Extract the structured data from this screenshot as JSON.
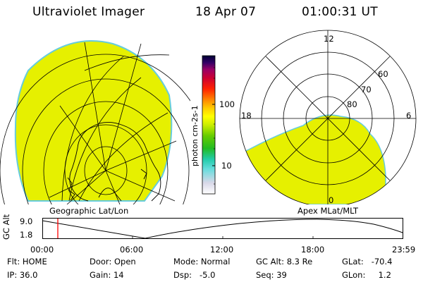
{
  "header": {
    "title": "Ultraviolet Imager",
    "date": "18 Apr 07",
    "time": "01:00:31 UT"
  },
  "colorbar": {
    "label": "photon cm-2s-1",
    "ticks": [
      "100",
      "10"
    ]
  },
  "left_panel": {
    "caption": "Geographic Lat/Lon"
  },
  "right_panel": {
    "caption": "Apex MLat/MLT",
    "mlt_labels": [
      "12",
      "18",
      "6",
      "0"
    ],
    "lat_labels": [
      "60",
      "70",
      "80"
    ]
  },
  "altitude_plot": {
    "axis_label": "GC Alt",
    "y_ticks": [
      "9.0",
      "1.8"
    ],
    "x_ticks": [
      "00:00",
      "06:00",
      "12:00",
      "18:00",
      "23:59"
    ],
    "marker_time": "01:00"
  },
  "status": {
    "flt_label": "Flt:",
    "flt_value": "HOME",
    "ip_label": "IP:",
    "ip_value": "36.0",
    "door_label": "Door:",
    "door_value": "Open",
    "gain_label": "Gain:",
    "gain_value": "14",
    "mode_label": "Mode:",
    "mode_value": "Normal",
    "dsp_label": "Dsp:",
    "dsp_value": "-5.0",
    "gcalt_label": "GC Alt:",
    "gcalt_value": "8.3 Re",
    "seq_label": "Seq:",
    "seq_value": "39",
    "glat_label": "GLat:",
    "glat_value": "-70.4",
    "glon_label": "GLon:",
    "glon_value": "1.2"
  },
  "colors": {
    "emission": "#e6f000",
    "edge": "#66ccdd",
    "marker": "#ff0000"
  }
}
